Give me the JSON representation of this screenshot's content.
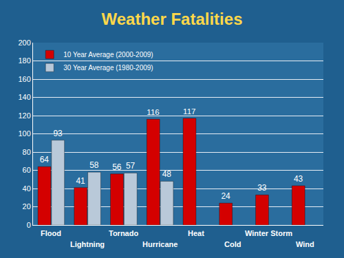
{
  "chart_data": {
    "type": "bar",
    "title": "Weather Fatalities",
    "categories": [
      "Flood",
      "Lightning",
      "Tornado",
      "Hurricane",
      "Heat",
      "Cold",
      "Winter Storm",
      "Wind"
    ],
    "series": [
      {
        "name": "10 Year Average (2000-2009)",
        "color": "#d40000",
        "values": [
          64,
          41,
          56,
          116,
          117,
          24,
          33,
          43
        ]
      },
      {
        "name": "30 Year Average (1980-2009)",
        "color": "#b9c9d9",
        "values": [
          93,
          58,
          57,
          48,
          null,
          null,
          null,
          null
        ]
      }
    ],
    "ylim": [
      0,
      200
    ],
    "yticks": [
      0,
      20,
      40,
      60,
      80,
      100,
      120,
      140,
      160,
      180,
      200
    ],
    "grid": true,
    "legend": "top-left",
    "data_labels": true
  }
}
